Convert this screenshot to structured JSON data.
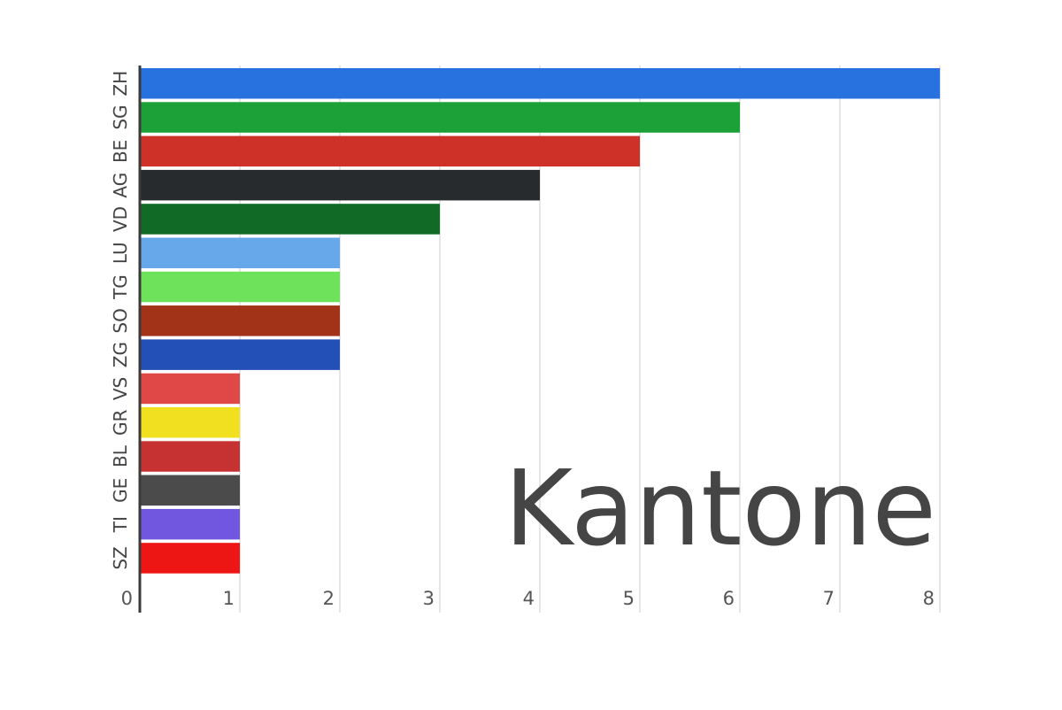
{
  "chart_data": {
    "type": "bar",
    "orientation": "horizontal",
    "title": "Kantone",
    "xlim": [
      0,
      8
    ],
    "xticks": [
      0,
      1,
      2,
      3,
      4,
      5,
      6,
      7,
      8
    ],
    "grid": true,
    "categories": [
      "ZH",
      "SG",
      "BE",
      "AG",
      "VD",
      "LU",
      "TG",
      "SO",
      "ZG",
      "VS",
      "GR",
      "BL",
      "GE",
      "TI",
      "SZ"
    ],
    "values": [
      8,
      6,
      5,
      4,
      3,
      2,
      2,
      2,
      2,
      1,
      1,
      1,
      1,
      1,
      1
    ],
    "colors": [
      "#2872e0",
      "#1ca038",
      "#cd3128",
      "#282b2d",
      "#116b27",
      "#67a8ea",
      "#6ee25a",
      "#a23218",
      "#2350b6",
      "#e04848",
      "#f0e020",
      "#c63232",
      "#4b4b4b",
      "#7157e0",
      "#ee1515"
    ]
  }
}
